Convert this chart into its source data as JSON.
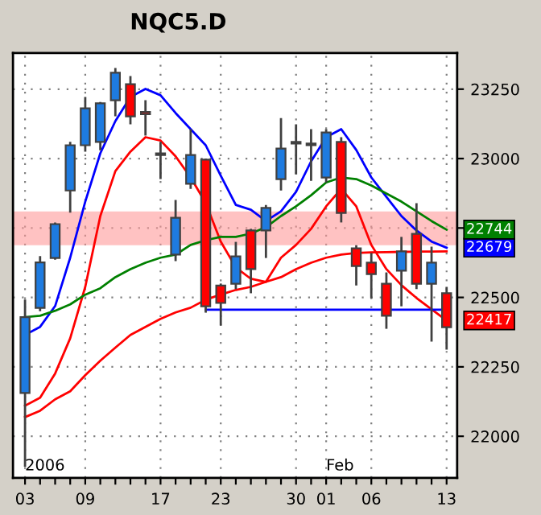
{
  "chart_data": {
    "type": "candlestick",
    "title": "NQC5.D",
    "categories": [
      "03",
      null,
      null,
      null,
      "09",
      null,
      null,
      null,
      null,
      "17",
      null,
      null,
      null,
      "23",
      null,
      null,
      null,
      null,
      "30",
      null,
      "01",
      null,
      null,
      "06",
      null,
      null,
      null,
      null,
      "13"
    ],
    "ohlc": [
      [
        22156,
        22492,
        21890,
        22429
      ],
      [
        22462,
        22649,
        22450,
        22626
      ],
      [
        22642,
        22770,
        22636,
        22764
      ],
      [
        22885,
        23060,
        22805,
        23048
      ],
      [
        23048,
        23222,
        23025,
        23181
      ],
      [
        23060,
        23204,
        23030,
        23199
      ],
      [
        23210,
        23326,
        23152,
        23309
      ],
      [
        23268,
        23297,
        23123,
        23152
      ],
      [
        23168,
        23210,
        23083,
        23160
      ],
      [
        23019,
        23060,
        22926,
        23013
      ],
      [
        22654,
        22851,
        22631,
        22787
      ],
      [
        22909,
        23106,
        22891,
        23013
      ],
      [
        22996,
        23000,
        22445,
        22468
      ],
      [
        22543,
        22550,
        22399,
        22480
      ],
      [
        22549,
        22700,
        22530,
        22648
      ],
      [
        22741,
        22747,
        22515,
        22602
      ],
      [
        22741,
        22833,
        22642,
        22822
      ],
      [
        22926,
        23146,
        22885,
        23036
      ],
      [
        23060,
        23123,
        22943,
        23054
      ],
      [
        23054,
        23106,
        22920,
        23048
      ],
      [
        22932,
        23106,
        22914,
        23094
      ],
      [
        23060,
        23077,
        22770,
        22804
      ],
      [
        22677,
        22688,
        22543,
        22613
      ],
      [
        22625,
        22660,
        22497,
        22584
      ],
      [
        22549,
        22590,
        22387,
        22434
      ],
      [
        22596,
        22718,
        22468,
        22666
      ],
      [
        22729,
        22839,
        22530,
        22549
      ],
      [
        22549,
        22683,
        22341,
        22625
      ],
      [
        22515,
        22538,
        22312,
        22393
      ]
    ],
    "colors": [
      "#1e7be0",
      "#1e7be0",
      "#1e7be0",
      "#1e7be0",
      "#1e7be0",
      "#1e7be0",
      "#1e7be0",
      "#ff0000",
      "#ff0000",
      "#ff0000",
      "#1e7be0",
      "#1e7be0",
      "#ff0000",
      "#ff0000",
      "#1e7be0",
      "#ff0000",
      "#1e7be0",
      "#1e7be0",
      "#ff0000",
      "#ff0000",
      "#1e7be0",
      "#ff0000",
      "#ff0000",
      "#ff0000",
      "#ff0000",
      "#1e7be0",
      "#ff0000",
      "#1e7be0",
      "#ff0000"
    ],
    "series": [
      {
        "type": "line",
        "color": "#0000ff",
        "values": [
          22365,
          22394,
          22469,
          22643,
          22845,
          23019,
          23135,
          23222,
          23251,
          23228,
          23164,
          23106,
          23048,
          22938,
          22833,
          22816,
          22775,
          22810,
          22880,
          22990,
          23077,
          23106,
          23031,
          22932,
          22862,
          22793,
          22741,
          22701,
          22679
        ],
        "value_labels": [
          null,
          null,
          null,
          null,
          null,
          null,
          null,
          null,
          null,
          null,
          null,
          null,
          null,
          null,
          null,
          null,
          null,
          null,
          null,
          null,
          null,
          null,
          null,
          null,
          null,
          null,
          null,
          null,
          "22679"
        ]
      },
      {
        "type": "line",
        "color": "#ff0000",
        "values": [
          22110,
          22139,
          22226,
          22353,
          22538,
          22793,
          22955,
          23025,
          23077,
          23065,
          23008,
          22932,
          22840,
          22701,
          22608,
          22567,
          22556,
          22643,
          22689,
          22747,
          22828,
          22891,
          22828,
          22689,
          22602,
          22544,
          22498,
          22457,
          22417
        ],
        "value_labels": [
          null,
          null,
          null,
          null,
          null,
          null,
          null,
          null,
          null,
          null,
          null,
          null,
          null,
          null,
          null,
          null,
          null,
          null,
          null,
          null,
          null,
          null,
          null,
          null,
          null,
          null,
          null,
          null,
          "22417"
        ]
      },
      {
        "type": "line",
        "color": "#ff0000",
        "values": [
          22069,
          22092,
          22133,
          22162,
          22220,
          22272,
          22319,
          22365,
          22394,
          22423,
          22446,
          22463,
          22492,
          22510,
          22527,
          22538,
          22556,
          22573,
          22602,
          22625,
          22643,
          22654,
          22660,
          22662,
          22663,
          22664,
          22665,
          22665,
          22666
        ]
      },
      {
        "type": "line",
        "color": "#008000",
        "values": [
          22429,
          22434,
          22452,
          22475,
          22510,
          22533,
          22573,
          22602,
          22625,
          22643,
          22654,
          22689,
          22706,
          22718,
          22718,
          22730,
          22753,
          22793,
          22828,
          22868,
          22914,
          22932,
          22926,
          22903,
          22874,
          22845,
          22810,
          22775,
          22744
        ],
        "value_labels": [
          null,
          null,
          null,
          null,
          null,
          null,
          null,
          null,
          null,
          null,
          null,
          null,
          null,
          null,
          null,
          null,
          null,
          null,
          null,
          null,
          null,
          null,
          null,
          null,
          null,
          null,
          null,
          null,
          "22744"
        ]
      },
      {
        "type": "line",
        "color": "#0000ff",
        "values": [
          null,
          null,
          null,
          null,
          null,
          null,
          null,
          null,
          null,
          null,
          null,
          null,
          22456,
          22456,
          22456,
          22456,
          22456,
          22456,
          22456,
          22456,
          22456,
          22456,
          22456,
          22456,
          22456,
          22456,
          22456,
          22456,
          22456
        ]
      }
    ],
    "bands": [
      {
        "axis": "y",
        "from": 22688,
        "to": 22810,
        "color": "#ff9999"
      }
    ],
    "annotations": [
      "2006",
      "Feb"
    ],
    "ylim": [
      21850,
      23380
    ],
    "yticks": [
      22000,
      22250,
      22500,
      {
        "value": 22750,
        "label": null
      },
      23000,
      23250
    ],
    "grid": true
  }
}
